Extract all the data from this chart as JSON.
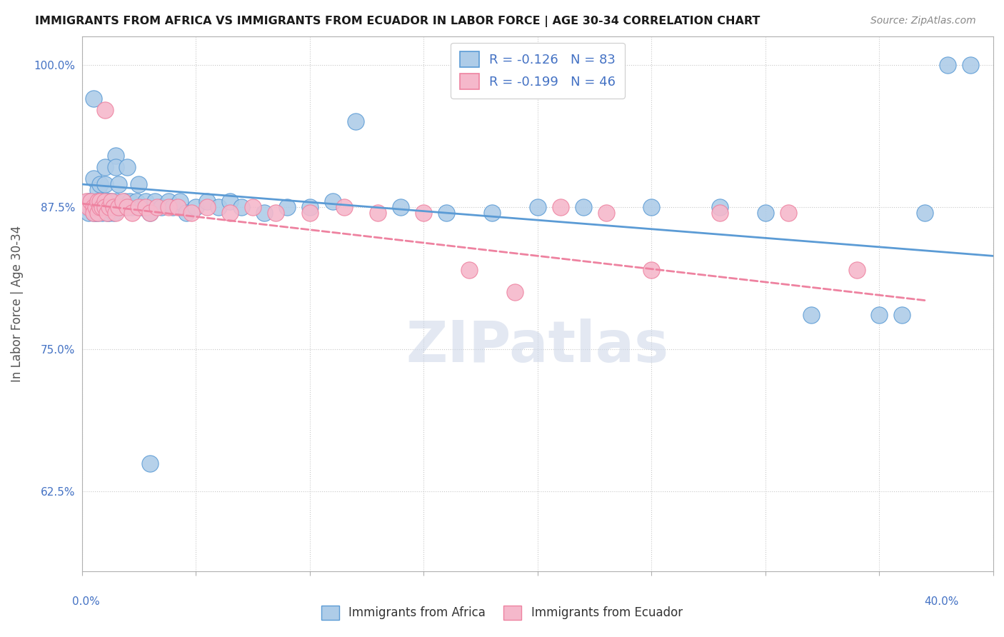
{
  "title": "IMMIGRANTS FROM AFRICA VS IMMIGRANTS FROM ECUADOR IN LABOR FORCE | AGE 30-34 CORRELATION CHART",
  "source": "Source: ZipAtlas.com",
  "ylabel": "In Labor Force | Age 30-34",
  "legend_africa": "R = -0.126   N = 83",
  "legend_ecuador": "R = -0.199   N = 46",
  "legend_label_africa": "Immigrants from Africa",
  "legend_label_ecuador": "Immigrants from Ecuador",
  "africa_color": "#aecce8",
  "ecuador_color": "#f5b8cb",
  "trendline_africa_color": "#5b9bd5",
  "trendline_ecuador_color": "#ee82a0",
  "background_color": "#ffffff",
  "watermark": "ZIPatlas",
  "xlim": [
    0.0,
    0.4
  ],
  "ylim": [
    0.555,
    1.025
  ],
  "ytick_vals": [
    0.625,
    0.75,
    0.875,
    1.0
  ],
  "ytick_labels": [
    "62.5%",
    "75.0%",
    "87.5%",
    "100.0%"
  ],
  "africa_trendline_x": [
    0.0,
    0.4
  ],
  "africa_trendline_y": [
    0.895,
    0.832
  ],
  "ecuador_trendline_x": [
    0.0,
    0.37
  ],
  "ecuador_trendline_y": [
    0.878,
    0.793
  ],
  "africa_x": [
    0.002,
    0.003,
    0.003,
    0.004,
    0.004,
    0.005,
    0.005,
    0.005,
    0.006,
    0.006,
    0.006,
    0.007,
    0.007,
    0.007,
    0.007,
    0.008,
    0.008,
    0.008,
    0.009,
    0.009,
    0.009,
    0.01,
    0.01,
    0.01,
    0.011,
    0.011,
    0.012,
    0.012,
    0.012,
    0.013,
    0.013,
    0.014,
    0.014,
    0.015,
    0.015,
    0.016,
    0.016,
    0.017,
    0.018,
    0.019,
    0.02,
    0.021,
    0.022,
    0.024,
    0.025,
    0.026,
    0.028,
    0.03,
    0.032,
    0.035,
    0.038,
    0.04,
    0.043,
    0.046,
    0.05,
    0.055,
    0.06,
    0.065,
    0.07,
    0.08,
    0.09,
    0.1,
    0.11,
    0.12,
    0.14,
    0.16,
    0.18,
    0.2,
    0.22,
    0.25,
    0.28,
    0.3,
    0.32,
    0.35,
    0.36,
    0.37,
    0.38,
    0.39,
    0.005,
    0.01,
    0.015,
    0.02,
    0.03
  ],
  "africa_y": [
    0.875,
    0.88,
    0.87,
    0.88,
    0.875,
    0.9,
    0.875,
    0.87,
    0.88,
    0.875,
    0.87,
    0.89,
    0.875,
    0.88,
    0.87,
    0.875,
    0.895,
    0.875,
    0.88,
    0.875,
    0.87,
    0.875,
    0.895,
    0.875,
    0.88,
    0.87,
    0.88,
    0.875,
    0.87,
    0.875,
    0.88,
    0.87,
    0.875,
    0.88,
    0.92,
    0.875,
    0.895,
    0.875,
    0.875,
    0.88,
    0.875,
    0.88,
    0.875,
    0.88,
    0.895,
    0.875,
    0.88,
    0.87,
    0.88,
    0.875,
    0.88,
    0.875,
    0.88,
    0.87,
    0.875,
    0.88,
    0.875,
    0.88,
    0.875,
    0.87,
    0.875,
    0.875,
    0.88,
    0.95,
    0.875,
    0.87,
    0.87,
    0.875,
    0.875,
    0.875,
    0.875,
    0.87,
    0.78,
    0.78,
    0.78,
    0.87,
    1.0,
    1.0,
    0.97,
    0.91,
    0.91,
    0.91,
    0.65
  ],
  "ecuador_x": [
    0.002,
    0.003,
    0.004,
    0.005,
    0.005,
    0.006,
    0.007,
    0.007,
    0.008,
    0.008,
    0.009,
    0.01,
    0.01,
    0.011,
    0.012,
    0.013,
    0.014,
    0.015,
    0.016,
    0.018,
    0.02,
    0.022,
    0.025,
    0.028,
    0.03,
    0.033,
    0.038,
    0.042,
    0.048,
    0.055,
    0.065,
    0.075,
    0.085,
    0.1,
    0.115,
    0.13,
    0.15,
    0.17,
    0.19,
    0.21,
    0.23,
    0.25,
    0.28,
    0.31,
    0.34,
    0.01
  ],
  "ecuador_y": [
    0.88,
    0.875,
    0.88,
    0.875,
    0.87,
    0.875,
    0.88,
    0.87,
    0.875,
    0.88,
    0.875,
    0.88,
    0.875,
    0.87,
    0.875,
    0.88,
    0.875,
    0.87,
    0.875,
    0.88,
    0.875,
    0.87,
    0.875,
    0.875,
    0.87,
    0.875,
    0.875,
    0.875,
    0.87,
    0.875,
    0.87,
    0.875,
    0.87,
    0.87,
    0.875,
    0.87,
    0.87,
    0.82,
    0.8,
    0.875,
    0.87,
    0.82,
    0.87,
    0.87,
    0.82,
    0.96
  ]
}
